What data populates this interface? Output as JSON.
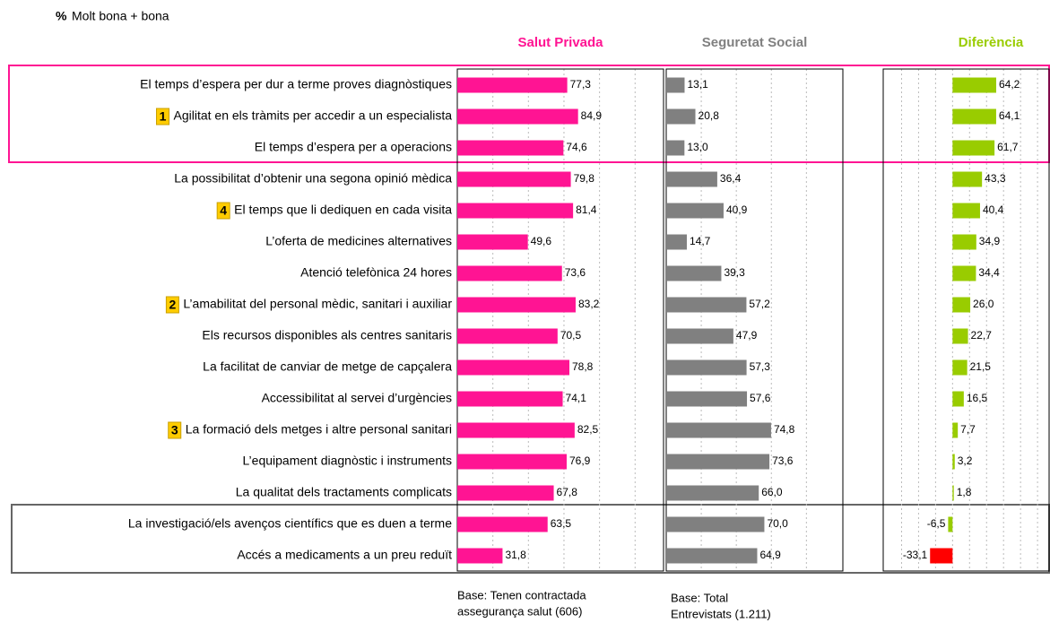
{
  "chart_data": {
    "type": "bar",
    "orientation": "horizontal",
    "units": "%",
    "subtitle": "Molt bona + bona",
    "categories": [
      "El temps d’espera per dur a terme proves diagnòstiques",
      "Agilitat en els tràmits per accedir a un especialista",
      "El temps d’espera per a operacions",
      "La possibilitat d’obtenir una segona opinió mèdica",
      "El temps que li dediquen en cada visita",
      "L’oferta de medicines alternatives",
      "Atenció telefònica 24 hores",
      "L’amabilitat del personal mèdic, sanitari i auxiliar",
      "Els recursos disponibles als centres sanitaris",
      "La facilitat de canviar de metge de capçalera",
      "Accessibilitat al servei d’urgències",
      "La formació dels metges i altre personal sanitari",
      "L’equipament diagnòstic i instruments",
      "La qualitat dels tractaments complicats",
      "La investigació/els avenços científics que es duen a terme",
      "Accés a medicaments a un preu reduït"
    ],
    "badges": [
      null,
      1,
      null,
      null,
      4,
      null,
      null,
      2,
      null,
      null,
      null,
      3,
      null,
      null,
      null,
      null
    ],
    "series": [
      {
        "name": "Salut Privada",
        "color": "#ff1493",
        "values": [
          77.3,
          84.9,
          74.6,
          79.8,
          81.4,
          49.6,
          73.6,
          83.2,
          70.5,
          78.8,
          74.1,
          82.5,
          76.9,
          67.8,
          63.5,
          31.8
        ],
        "value_labels": [
          "77,3",
          "84,9",
          "74,6",
          "79,8",
          "81,4",
          "49,6",
          "73,6",
          "83,2",
          "70,5",
          "78,8",
          "74,1",
          "82,5",
          "76,9",
          "67,8",
          "63,5",
          "31,8"
        ],
        "xlim": [
          0,
          145
        ],
        "xticks": [
          25,
          50,
          75,
          100,
          125
        ],
        "base": [
          "Base: Tenen contractada",
          "assegurança salut (606)"
        ]
      },
      {
        "name": "Seguretat Social",
        "color": "#808080",
        "values": [
          13.1,
          20.8,
          13.0,
          36.4,
          40.9,
          14.7,
          39.3,
          57.2,
          47.9,
          57.3,
          57.6,
          74.8,
          73.6,
          66.0,
          70.0,
          64.9
        ],
        "value_labels": [
          "13,1",
          "20,8",
          "13,0",
          "36,4",
          "40,9",
          "14,7",
          "39,3",
          "57,2",
          "47,9",
          "57,3",
          "57,6",
          "74,8",
          "73,6",
          "66,0",
          "70,0",
          "64,9"
        ],
        "xlim": [
          0,
          126
        ],
        "xticks": [
          25,
          50,
          75,
          100
        ],
        "base": [
          "Base: Total",
          "Entrevistats (1.211)"
        ]
      },
      {
        "name": "Diferència",
        "color": "#99cc00",
        "values": [
          64.2,
          64.1,
          61.7,
          43.3,
          40.4,
          34.9,
          34.4,
          26.0,
          22.7,
          21.5,
          16.5,
          7.7,
          3.2,
          1.8,
          -6.5,
          -33.1
        ],
        "value_labels": [
          "64,2",
          "64,1",
          "61,7",
          "43,3",
          "40,4",
          "34,9",
          "34,4",
          "26,0",
          "22,7",
          "21,5",
          "16,5",
          "7,7",
          "3,2",
          "1,8",
          "-6,5",
          "-33,1"
        ],
        "colors": [
          "#99cc00",
          "#99cc00",
          "#99cc00",
          "#99cc00",
          "#99cc00",
          "#99cc00",
          "#99cc00",
          "#99cc00",
          "#99cc00",
          "#99cc00",
          "#99cc00",
          "#99cc00",
          "#99cc00",
          "#99cc00",
          "#99cc00",
          "#ff0000"
        ],
        "xlim": [
          -102,
          142
        ],
        "xticks": [
          -75,
          -50,
          -25,
          25,
          50,
          75,
          100,
          125
        ]
      }
    ]
  }
}
